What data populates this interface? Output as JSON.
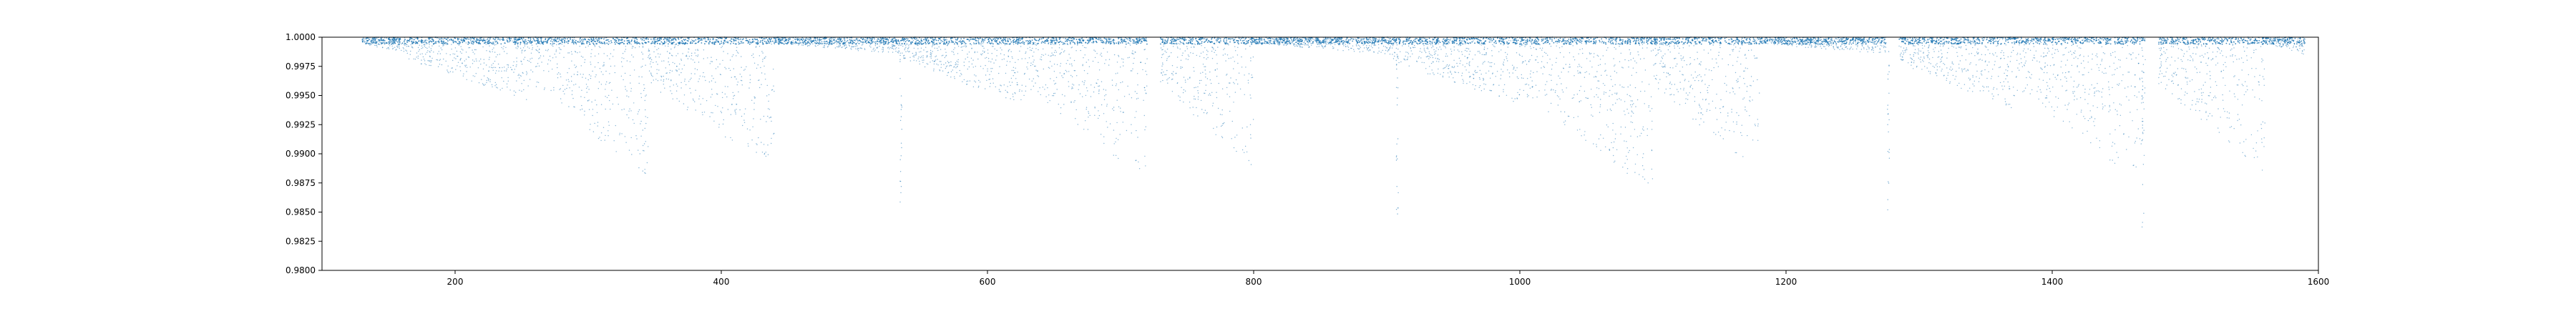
{
  "chart_data": {
    "type": "scatter",
    "title": "",
    "xlabel": "",
    "ylabel": "",
    "xlim": [
      100,
      1600
    ],
    "ylim": [
      0.98,
      1.0
    ],
    "grid": false,
    "series_color": "#1f77b4",
    "x_ticks": [
      {
        "value": 200,
        "label": "200"
      },
      {
        "value": 400,
        "label": "400"
      },
      {
        "value": 600,
        "label": "600"
      },
      {
        "value": 800,
        "label": "800"
      },
      {
        "value": 1000,
        "label": "1000"
      },
      {
        "value": 1200,
        "label": "1200"
      },
      {
        "value": 1400,
        "label": "1400"
      },
      {
        "value": 1600,
        "label": "1600"
      }
    ],
    "y_ticks": [
      {
        "value": 0.98,
        "label": "0.9800"
      },
      {
        "value": 0.9825,
        "label": "0.9825"
      },
      {
        "value": 0.985,
        "label": "0.9850"
      },
      {
        "value": 0.9875,
        "label": "0.9875"
      },
      {
        "value": 0.99,
        "label": "0.9900"
      },
      {
        "value": 0.9925,
        "label": "0.9925"
      },
      {
        "value": 0.995,
        "label": "0.9950"
      },
      {
        "value": 0.9975,
        "label": "0.9975"
      },
      {
        "value": 1.0,
        "label": "1.0000"
      }
    ],
    "segments": [
      {
        "x_start": 130,
        "x_end": 165,
        "y_min": 0.9985,
        "y_max": 1.0
      },
      {
        "x_start": 165,
        "x_end": 255,
        "y_min": 0.9945,
        "y_max": 1.0
      },
      {
        "x_start": 255,
        "x_end": 345,
        "y_min": 0.988,
        "y_max": 1.0
      },
      {
        "x_start": 345,
        "x_end": 440,
        "y_min": 0.9885,
        "y_max": 1.0
      },
      {
        "x_start": 440,
        "x_end": 535,
        "y_min": 0.9985,
        "y_max": 1.0
      },
      {
        "x_start": 535,
        "x_end": 630,
        "y_min": 0.994,
        "y_max": 1.0
      },
      {
        "x_start": 630,
        "x_end": 720,
        "y_min": 0.9875,
        "y_max": 1.0
      },
      {
        "x_start": 730,
        "x_end": 800,
        "y_min": 0.9885,
        "y_max": 1.0
      },
      {
        "x_start": 800,
        "x_end": 905,
        "y_min": 0.9985,
        "y_max": 1.0
      },
      {
        "x_start": 905,
        "x_end": 1000,
        "y_min": 0.994,
        "y_max": 1.0
      },
      {
        "x_start": 1000,
        "x_end": 1100,
        "y_min": 0.9865,
        "y_max": 1.0
      },
      {
        "x_start": 1100,
        "x_end": 1180,
        "y_min": 0.988,
        "y_max": 1.0
      },
      {
        "x_start": 1180,
        "x_end": 1275,
        "y_min": 0.9985,
        "y_max": 1.0
      },
      {
        "x_start": 1285,
        "x_end": 1375,
        "y_min": 0.9935,
        "y_max": 1.0
      },
      {
        "x_start": 1375,
        "x_end": 1470,
        "y_min": 0.987,
        "y_max": 1.0
      },
      {
        "x_start": 1480,
        "x_end": 1560,
        "y_min": 0.988,
        "y_max": 1.0
      },
      {
        "x_start": 1560,
        "x_end": 1590,
        "y_min": 0.9985,
        "y_max": 1.0
      }
    ],
    "dips": [
      {
        "x": 535,
        "y_min": 0.9855
      },
      {
        "x": 908,
        "y_min": 0.9835
      },
      {
        "x": 1277,
        "y_min": 0.982
      },
      {
        "x": 1468,
        "y_min": 0.982
      }
    ]
  }
}
